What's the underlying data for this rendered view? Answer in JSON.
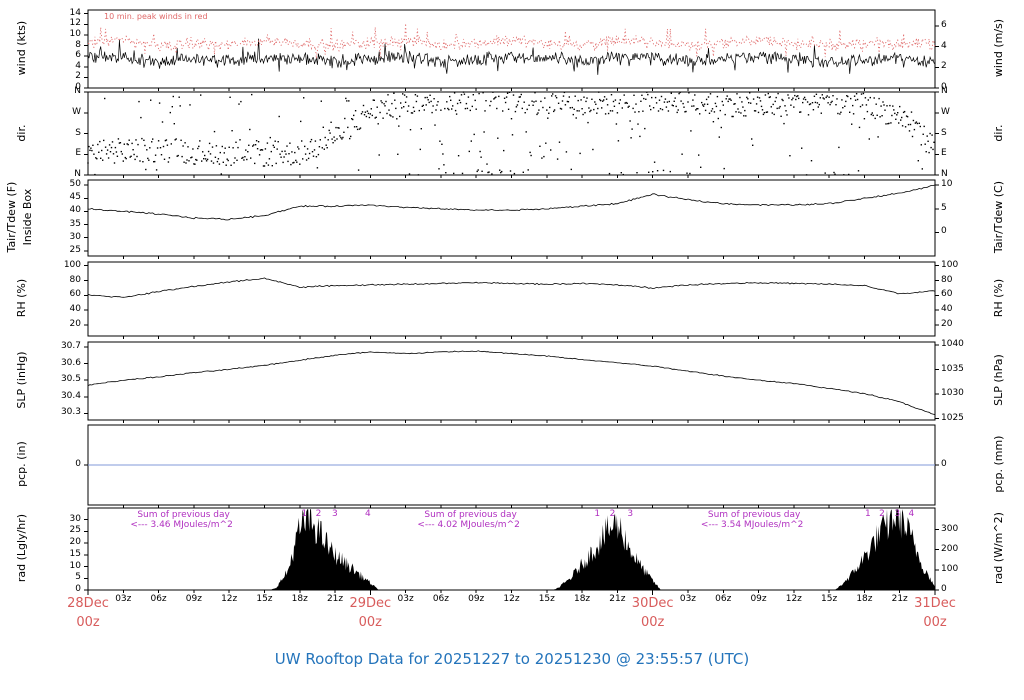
{
  "figure": {
    "title": "UW Rooftop Data for 20251227  to  20251230 @ 23:55:57  (UTC)",
    "title_color": "#2474bb",
    "background": "#ffffff"
  },
  "colors": {
    "trace": "#000000",
    "peak_wind_red": "#e06a6a",
    "date_red": "#d85c5c",
    "annotation_purple": "#b030c0",
    "precip_blue": "#8098d8",
    "axis": "#000000"
  },
  "chart_data": {
    "type": "line",
    "x_axis": {
      "total_hours": 72,
      "hour_tick_labels": [
        "03z",
        "06z",
        "09z",
        "12z",
        "15z",
        "18z",
        "21z"
      ],
      "date_ticks": [
        {
          "hour": 0,
          "line1": "28Dec",
          "line2": "00z"
        },
        {
          "hour": 24,
          "line1": "29Dec",
          "line2": "00z"
        },
        {
          "hour": 48,
          "line1": "30Dec",
          "line2": "00z"
        },
        {
          "hour": 72,
          "line1": "31Dec",
          "line2": "00z"
        }
      ]
    },
    "panels": [
      {
        "id": "wind",
        "left_label": "wind (kts)",
        "right_label": "wind (m/s)",
        "ylim": [
          0,
          14.7
        ],
        "left_ticks": [
          {
            "v": 0,
            "l": "0"
          },
          {
            "v": 2,
            "l": "2"
          },
          {
            "v": 4,
            "l": "4"
          },
          {
            "v": 6,
            "l": "6"
          },
          {
            "v": 8,
            "l": "8"
          },
          {
            "v": 10,
            "l": "10"
          },
          {
            "v": 12,
            "l": "12"
          },
          {
            "v": 14,
            "l": "14"
          }
        ],
        "right_ticks": [
          {
            "v": 0,
            "l": "0"
          },
          {
            "v": 3.89,
            "l": "2"
          },
          {
            "v": 7.78,
            "l": "4"
          },
          {
            "v": 11.66,
            "l": "6"
          }
        ],
        "note": "10 min. peak winds in red",
        "series": [
          {
            "name": "wind-speed",
            "kind": "noisy",
            "color": "#000000",
            "base": [
              5.5,
              6,
              5,
              5.5,
              5,
              6,
              5.5,
              5,
              5.5,
              6,
              5,
              5.5,
              6,
              5.5,
              5,
              6,
              5.5,
              5,
              5.5,
              6,
              5.5,
              5,
              5.5,
              5.5,
              5
            ],
            "noise": 1.5
          },
          {
            "name": "peak-wind",
            "kind": "noisy-dotted",
            "color": "#e06a6a",
            "base": [
              8.5,
              9,
              8,
              8.5,
              8,
              9,
              8.5,
              8,
              8.5,
              9,
              8,
              8.5,
              9,
              8.5,
              8,
              9,
              8.5,
              8,
              8.5,
              9,
              8.5,
              8,
              8.5,
              8.5,
              8
            ],
            "noise": 1.3
          }
        ]
      },
      {
        "id": "dir",
        "left_label": "dir.",
        "right_label": "dir.",
        "ylim": [
          0,
          360
        ],
        "left_ticks": [
          {
            "v": 0,
            "l": "N"
          },
          {
            "v": 90,
            "l": "E"
          },
          {
            "v": 180,
            "l": "S"
          },
          {
            "v": 270,
            "l": "W"
          },
          {
            "v": 360,
            "l": "N"
          }
        ],
        "right_ticks": [
          {
            "v": 0,
            "l": "N"
          },
          {
            "v": 90,
            "l": "E"
          },
          {
            "v": 180,
            "l": "S"
          },
          {
            "v": 270,
            "l": "W"
          },
          {
            "v": 360,
            "l": "N"
          }
        ],
        "series": [
          {
            "name": "wind-direction",
            "kind": "dir-scatter",
            "color": "#000000",
            "base": [
              100,
              105,
              110,
              100,
              95,
              90,
              95,
              160,
              280,
              310,
              325,
              335,
              320,
              310,
              300,
              320,
              330,
              320,
              310,
              300,
              310,
              320,
              300,
              260,
              120
            ],
            "noise": 45,
            "scatter": 0.2
          }
        ]
      },
      {
        "id": "temp",
        "left_label": [
          "Tair/Tdew (F)",
          "Inside Box"
        ],
        "right_label": "Tair/Tdew (C)",
        "ylim": [
          23,
          52
        ],
        "left_ticks": [
          {
            "v": 25,
            "l": "25"
          },
          {
            "v": 30,
            "l": "30"
          },
          {
            "v": 35,
            "l": "35"
          },
          {
            "v": 40,
            "l": "40"
          },
          {
            "v": 45,
            "l": "45"
          },
          {
            "v": 50,
            "l": "50"
          }
        ],
        "right_ticks": [
          {
            "v": 32,
            "l": "0"
          },
          {
            "v": 41,
            "l": "5"
          },
          {
            "v": 50,
            "l": "10"
          }
        ],
        "series": [
          {
            "name": "air-temperature",
            "kind": "smooth",
            "color": "#000000",
            "base": [
              41,
              40,
              39,
              37.5,
              37,
              38.5,
              42,
              42,
              42.5,
              41.5,
              41,
              40.5,
              40.5,
              41,
              42,
              43,
              46.5,
              44.5,
              43,
              42.5,
              42.5,
              43,
              45,
              47,
              50
            ],
            "noise": 0.35
          }
        ]
      },
      {
        "id": "rh",
        "left_label": "RH (%)",
        "right_label": "RH (%)",
        "ylim": [
          5,
          105
        ],
        "left_ticks": [
          {
            "v": 20,
            "l": "20"
          },
          {
            "v": 40,
            "l": "40"
          },
          {
            "v": 60,
            "l": "60"
          },
          {
            "v": 80,
            "l": "80"
          },
          {
            "v": 100,
            "l": "100"
          }
        ],
        "right_ticks": [
          {
            "v": 20,
            "l": "20"
          },
          {
            "v": 40,
            "l": "40"
          },
          {
            "v": 60,
            "l": "60"
          },
          {
            "v": 80,
            "l": "80"
          },
          {
            "v": 100,
            "l": "100"
          }
        ],
        "series": [
          {
            "name": "relative-humidity",
            "kind": "smooth",
            "color": "#000000",
            "base": [
              61,
              57,
              65,
              72,
              78,
              83,
              71,
              73,
              74,
              75,
              76,
              77,
              76,
              75,
              76,
              74,
              70,
              74,
              76,
              77,
              76,
              75,
              73,
              62,
              66
            ],
            "noise": 1.1
          }
        ]
      },
      {
        "id": "slp",
        "left_label": "SLP (inHg)",
        "right_label": "SLP (hPa)",
        "ylim": [
          30.26,
          30.73
        ],
        "left_ticks": [
          {
            "v": 30.3,
            "l": "30.3"
          },
          {
            "v": 30.4,
            "l": "30.4"
          },
          {
            "v": 30.5,
            "l": "30.5"
          },
          {
            "v": 30.6,
            "l": "30.6"
          },
          {
            "v": 30.7,
            "l": "30.7"
          }
        ],
        "right_ticks": [
          {
            "v": 30.268,
            "l": "1025"
          },
          {
            "v": 30.416,
            "l": "1030"
          },
          {
            "v": 30.563,
            "l": "1035"
          },
          {
            "v": 30.711,
            "l": "1040"
          }
        ],
        "series": [
          {
            "name": "sea-level-pressure",
            "kind": "smooth",
            "color": "#000000",
            "base": [
              30.47,
              30.5,
              30.52,
              30.545,
              30.565,
              30.59,
              30.62,
              30.65,
              30.67,
              30.66,
              30.67,
              30.675,
              30.66,
              30.645,
              30.625,
              30.605,
              30.585,
              30.555,
              30.525,
              30.5,
              30.48,
              30.45,
              30.42,
              30.37,
              30.29
            ],
            "noise": 0.004
          }
        ]
      },
      {
        "id": "pcp",
        "left_label": "pcp. (in)",
        "right_label": "pcp. (mm)",
        "ylim": [
          -1,
          1
        ],
        "left_ticks": [
          {
            "v": 0,
            "l": "0"
          }
        ],
        "right_ticks": [
          {
            "v": 0,
            "l": "0"
          }
        ],
        "series": [
          {
            "name": "precipitation",
            "kind": "hline",
            "v": 0,
            "color": "#8098d8"
          }
        ]
      },
      {
        "id": "rad",
        "left_label": "rad (Lgly/hr)",
        "right_label": "rad (W/m^2)",
        "ylim": [
          0,
          35
        ],
        "left_ticks": [
          {
            "v": 0,
            "l": "0"
          },
          {
            "v": 5,
            "l": "5"
          },
          {
            "v": 10,
            "l": "10"
          },
          {
            "v": 15,
            "l": "15"
          },
          {
            "v": 20,
            "l": "20"
          },
          {
            "v": 25,
            "l": "25"
          },
          {
            "v": 30,
            "l": "30"
          }
        ],
        "right_ticks": [
          {
            "v": 0,
            "l": "0"
          },
          {
            "v": 8.6,
            "l": "100"
          },
          {
            "v": 17.2,
            "l": "200"
          },
          {
            "v": 25.8,
            "l": "300"
          }
        ],
        "series": [
          {
            "name": "solar-radiation",
            "kind": "rad-fill",
            "color": "#000000",
            "points": [
              [
                0,
                0
              ],
              [
                15.5,
                0
              ],
              [
                16,
                1
              ],
              [
                17,
                8
              ],
              [
                17.5,
                18
              ],
              [
                18,
                26
              ],
              [
                18.5,
                30
              ],
              [
                19,
                29
              ],
              [
                19.5,
                26
              ],
              [
                20,
                22
              ],
              [
                20.5,
                18
              ],
              [
                21,
                15
              ],
              [
                22,
                11
              ],
              [
                23,
                7
              ],
              [
                24,
                3
              ],
              [
                24.7,
                0
              ],
              [
                39.5,
                0
              ],
              [
                40,
                1
              ],
              [
                41,
                5
              ],
              [
                42,
                11
              ],
              [
                43,
                17
              ],
              [
                44,
                24
              ],
              [
                44.5,
                27
              ],
              [
                45,
                28
              ],
              [
                45.5,
                24
              ],
              [
                46,
                18
              ],
              [
                47,
                10
              ],
              [
                48,
                4
              ],
              [
                48.7,
                0
              ],
              [
                63.5,
                0
              ],
              [
                64,
                2
              ],
              [
                65,
                7
              ],
              [
                66,
                14
              ],
              [
                67,
                22
              ],
              [
                68,
                28
              ],
              [
                68.7,
                33
              ],
              [
                69,
                31
              ],
              [
                69.5,
                27
              ],
              [
                70,
                22
              ],
              [
                70.5,
                16
              ],
              [
                71,
                10
              ],
              [
                71.7,
                4
              ],
              [
                72,
                1
              ]
            ]
          }
        ],
        "annotations": [
          {
            "lines": [
              "Sum of previous day",
              "<--- 3.46 MJoules/m^2"
            ],
            "hour": 3.6
          },
          {
            "lines": [
              "Sum of previous day",
              "<--- 4.02 MJoules/m^2"
            ],
            "hour": 28.0
          },
          {
            "lines": [
              "Sum of previous day",
              "<--- 3.54 MJoules/m^2"
            ],
            "hour": 52.1
          }
        ],
        "markers": [
          {
            "label": "1",
            "hour": 18.4
          },
          {
            "label": "2",
            "hour": 19.6
          },
          {
            "label": "3",
            "hour": 21.0
          },
          {
            "label": "4",
            "hour": 23.8
          },
          {
            "label": "1",
            "hour": 43.3
          },
          {
            "label": "2",
            "hour": 44.6
          },
          {
            "label": "3",
            "hour": 46.1
          },
          {
            "label": "1",
            "hour": 66.3
          },
          {
            "label": "2",
            "hour": 67.5
          },
          {
            "label": "3",
            "hour": 68.8
          },
          {
            "label": "4",
            "hour": 70.0
          }
        ]
      }
    ]
  }
}
